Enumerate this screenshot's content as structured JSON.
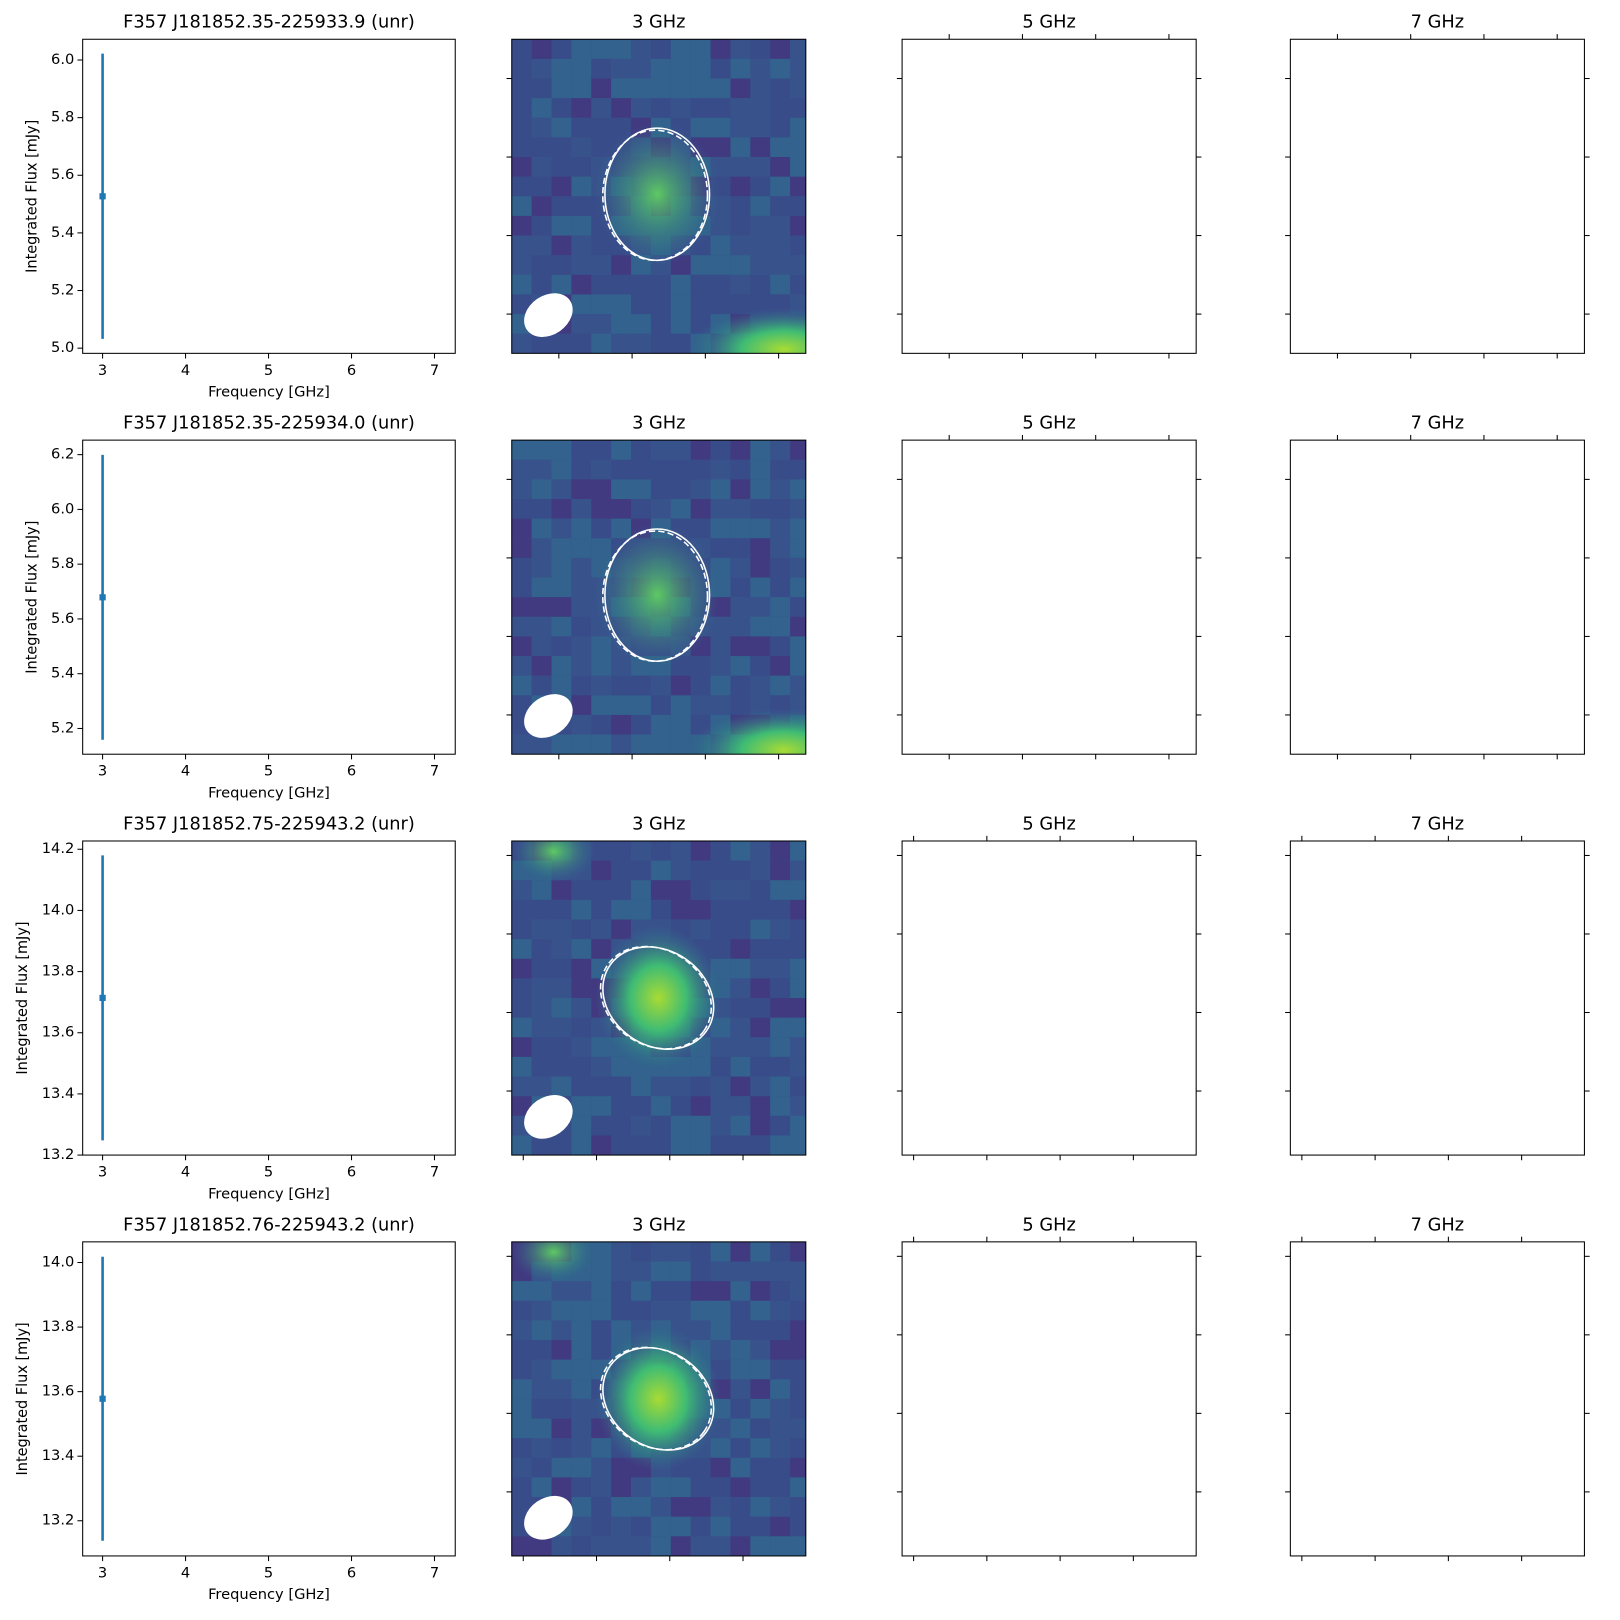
{
  "chart_data": [
    {
      "type": "errorbar",
      "title": "F357 J181852.35-225933.9 (unr)",
      "xlabel": "Frequency [GHz]",
      "ylabel": "Integrated Flux [mJy]",
      "x": [
        3
      ],
      "values": [
        5.527
      ],
      "errors": [
        0.495
      ],
      "color": "#1f77b4",
      "xlim": [
        2.76,
        7.25
      ],
      "ylim": [
        4.982,
        6.072
      ],
      "xticks": [
        3,
        4,
        5,
        6,
        7
      ],
      "yticks": [
        {
          "value": 5.0,
          "label": "5.0"
        },
        5.2,
        5.4,
        5.6,
        5.8,
        {
          "value": 6.0,
          "label": "6.0"
        }
      ],
      "panels": [
        "3 GHz",
        "5 GHz",
        "7 GHz"
      ]
    },
    {
      "type": "errorbar",
      "title": "F357 J181852.35-225934.0 (unr)",
      "xlabel": "Frequency [GHz]",
      "ylabel": "Integrated Flux [mJy]",
      "x": [
        3
      ],
      "values": [
        5.679
      ],
      "errors": [
        0.52
      ],
      "color": "#1f77b4",
      "xlim": [
        2.76,
        7.25
      ],
      "ylim": [
        5.106,
        6.253
      ],
      "xticks": [
        3,
        4,
        5,
        6,
        7
      ],
      "yticks": [
        5.2,
        5.4,
        5.6,
        5.8,
        {
          "value": 6.0,
          "label": "6.0"
        },
        6.2
      ],
      "panels": [
        "3 GHz",
        "5 GHz",
        "7 GHz"
      ]
    },
    {
      "type": "errorbar",
      "title": "F357 J181852.75-225943.2 (unr)",
      "xlabel": "Frequency [GHz]",
      "ylabel": "Integrated Flux [mJy]",
      "x": [
        3
      ],
      "values": [
        13.714
      ],
      "errors": [
        0.466
      ],
      "color": "#1f77b4",
      "xlim": [
        2.76,
        7.25
      ],
      "ylim": [
        13.2,
        14.227
      ],
      "xticks": [
        3,
        4,
        5,
        6,
        7
      ],
      "yticks": [
        13.2,
        13.4,
        13.6,
        13.8,
        {
          "value": 14.0,
          "label": "14.0"
        },
        14.2
      ],
      "panels": [
        "3 GHz",
        "5 GHz",
        "7 GHz"
      ]
    },
    {
      "type": "errorbar",
      "title": "F357 J181852.76-225943.2 (unr)",
      "xlabel": "Frequency [GHz]",
      "ylabel": "Integrated Flux [mJy]",
      "x": [
        3
      ],
      "values": [
        13.578
      ],
      "errors": [
        0.44
      ],
      "color": "#1f77b4",
      "xlim": [
        2.76,
        7.25
      ],
      "ylim": [
        13.091,
        14.064
      ],
      "xticks": [
        3,
        4,
        5,
        6,
        7
      ],
      "yticks": [
        13.2,
        13.4,
        13.6,
        13.8,
        {
          "value": 14.0,
          "label": "14.0"
        }
      ],
      "panels": [
        "3 GHz",
        "5 GHz",
        "7 GHz"
      ]
    }
  ]
}
